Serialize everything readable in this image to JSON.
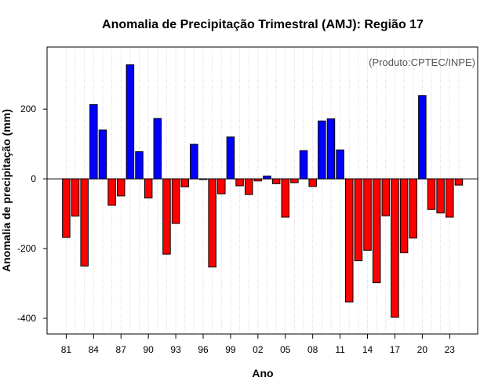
{
  "chart_data": {
    "type": "bar",
    "title": "Anomalia de Precipitação Trimestral (AMJ): Região 17",
    "xlabel": "Ano",
    "ylabel": "Anomalia de precipitação (mm)",
    "credit": "(Produto:CPTEC/INPE)",
    "ylim": [
      -445,
      378
    ],
    "yticks": [
      -400,
      -200,
      0,
      200
    ],
    "ytick_labels": [
      "-400",
      "-200",
      "0",
      "200"
    ],
    "xtick_labels": [
      "81",
      "84",
      "87",
      "90",
      "93",
      "96",
      "99",
      "02",
      "05",
      "08",
      "11",
      "14",
      "17",
      "20",
      "23"
    ],
    "categories": [
      "81",
      "82",
      "83",
      "84",
      "85",
      "86",
      "87",
      "88",
      "89",
      "90",
      "91",
      "92",
      "93",
      "94",
      "95",
      "96",
      "97",
      "98",
      "99",
      "00",
      "01",
      "02",
      "03",
      "04",
      "05",
      "06",
      "07",
      "08",
      "09",
      "10",
      "11",
      "12",
      "13",
      "14",
      "15",
      "16",
      "17",
      "18",
      "19",
      "20",
      "21",
      "22",
      "23",
      "24"
    ],
    "values": [
      -168,
      -107,
      -250,
      213,
      140,
      -76,
      -49,
      327,
      78,
      -55,
      173,
      -216,
      -128,
      -23,
      99,
      -2,
      -253,
      -43,
      120,
      -20,
      -45,
      -6,
      8,
      -14,
      -110,
      -11,
      81,
      -22,
      166,
      172,
      83,
      -353,
      -235,
      -205,
      -298,
      -106,
      -397,
      -212,
      -170,
      239,
      -88,
      -98,
      -110,
      -18
    ],
    "colors": {
      "positive": "#0000ff",
      "negative": "#ff0000",
      "outline": "#000000",
      "grid": "#d3d3d3",
      "zero_line": "#000000"
    },
    "grid": true,
    "legend": "none"
  }
}
